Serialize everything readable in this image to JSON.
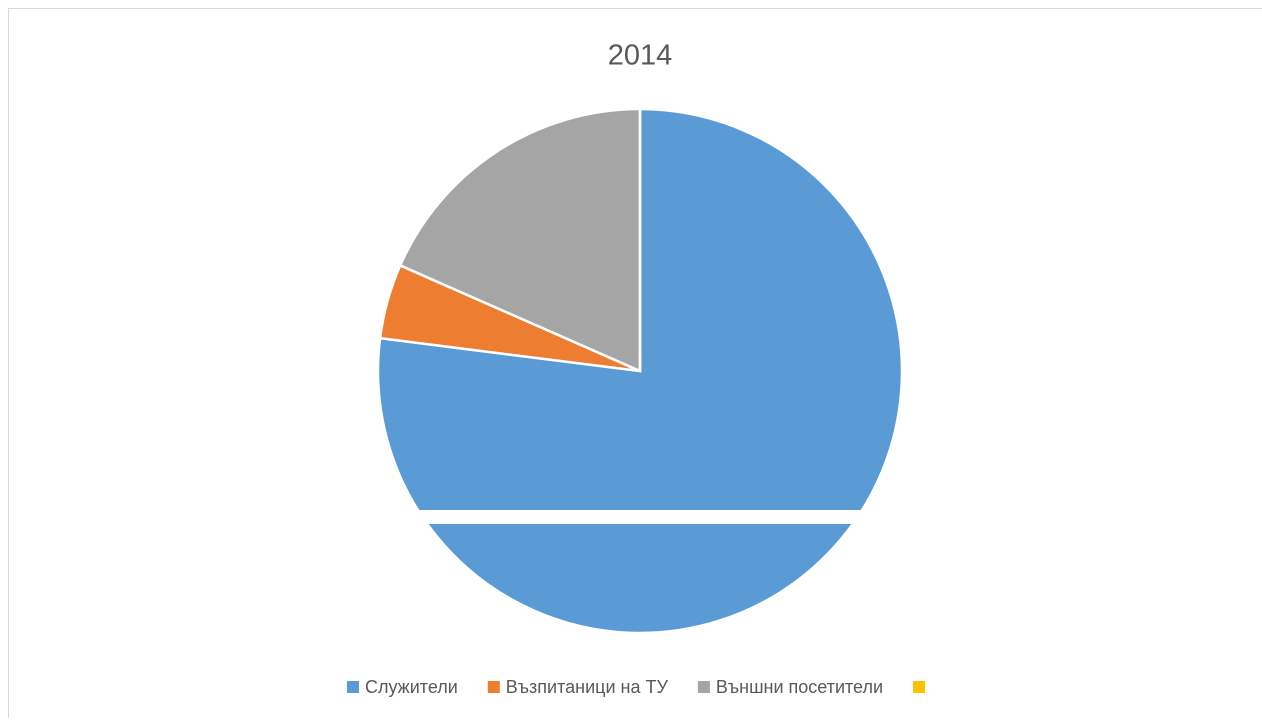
{
  "chart_data": {
    "type": "pie",
    "title": "2014",
    "categories": [
      "Служители",
      "Възпитаници на ТУ",
      "Външни посетители",
      null
    ],
    "values": [
      77,
      4.6,
      18.4,
      0
    ],
    "colors": [
      "#5b9bd5",
      "#ed7d31",
      "#a5a5a5",
      "#ffc000"
    ],
    "legend": "bottom"
  }
}
